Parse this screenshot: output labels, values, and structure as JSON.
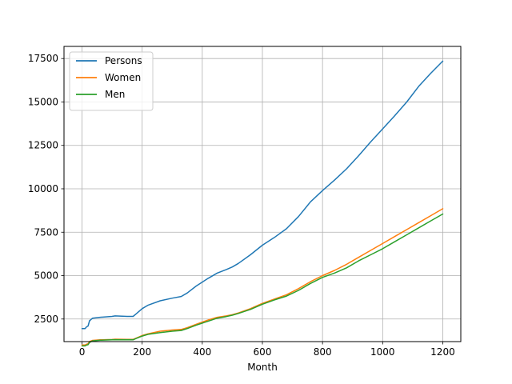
{
  "chart_data": {
    "type": "line",
    "title": "",
    "xlabel": "Month",
    "ylabel": "",
    "xlim": [
      -60,
      1260
    ],
    "ylim": [
      1200,
      18200
    ],
    "xticks": [
      0,
      200,
      400,
      600,
      800,
      1000,
      1200
    ],
    "xtick_labels": [
      "0",
      "200",
      "400",
      "600",
      "800",
      "1000",
      "1200"
    ],
    "yticks": [
      2500,
      5000,
      7500,
      10000,
      12500,
      15000,
      17500
    ],
    "ytick_labels": [
      "2500",
      "5000",
      "7500",
      "10000",
      "12500",
      "15000",
      "17500"
    ],
    "grid": true,
    "legend_position": "top-left",
    "x": [
      0,
      10,
      15,
      20,
      25,
      35,
      60,
      100,
      110,
      150,
      170,
      180,
      200,
      220,
      260,
      300,
      330,
      350,
      380,
      420,
      450,
      480,
      500,
      520,
      560,
      600,
      640,
      680,
      720,
      760,
      800,
      840,
      880,
      920,
      960,
      1000,
      1040,
      1080,
      1120,
      1160,
      1200
    ],
    "series": [
      {
        "name": "Persons",
        "color": "#1f77b4",
        "values": [
          1950,
          1950,
          2050,
          2100,
          2400,
          2550,
          2600,
          2650,
          2680,
          2650,
          2650,
          2800,
          3100,
          3300,
          3550,
          3700,
          3800,
          4000,
          4400,
          4850,
          5150,
          5350,
          5500,
          5700,
          6200,
          6750,
          7200,
          7700,
          8400,
          9250,
          9900,
          10500,
          11150,
          11900,
          12700,
          13450,
          14200,
          15000,
          15900,
          16650,
          17350
        ]
      },
      {
        "name": "Women",
        "color": "#ff7f0e",
        "values": [
          1000,
          1000,
          1050,
          1080,
          1200,
          1270,
          1300,
          1320,
          1340,
          1330,
          1330,
          1400,
          1550,
          1650,
          1800,
          1870,
          1900,
          2000,
          2200,
          2450,
          2600,
          2680,
          2750,
          2850,
          3100,
          3400,
          3650,
          3900,
          4250,
          4650,
          5000,
          5300,
          5650,
          6050,
          6450,
          6850,
          7250,
          7650,
          8050,
          8450,
          8850
        ]
      },
      {
        "name": "Men",
        "color": "#2ca02c",
        "values": [
          950,
          950,
          1000,
          1020,
          1150,
          1240,
          1280,
          1300,
          1310,
          1300,
          1300,
          1380,
          1520,
          1620,
          1720,
          1800,
          1840,
          1950,
          2150,
          2380,
          2550,
          2640,
          2720,
          2820,
          3050,
          3350,
          3600,
          3820,
          4150,
          4550,
          4900,
          5150,
          5450,
          5850,
          6200,
          6550,
          6950,
          7350,
          7750,
          8150,
          8550
        ]
      }
    ]
  }
}
